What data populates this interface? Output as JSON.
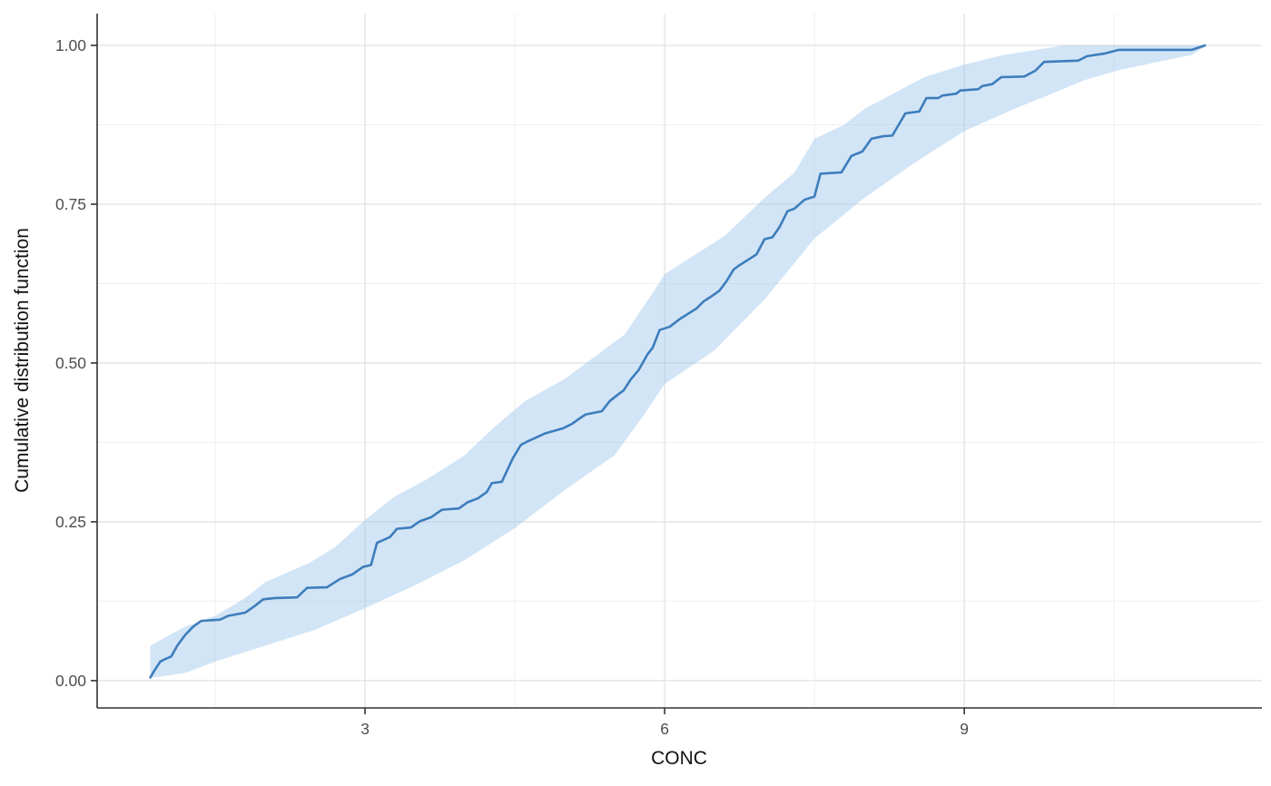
{
  "figure": {
    "background": "#ffffff",
    "panel_background": "#ffffff",
    "grid_major_color": "#e2e2e2",
    "grid_minor_color": "#efefef",
    "axis_line_color": "#333333",
    "tick_label_color": "#4d4d4d",
    "axis_title_color": "#111111"
  },
  "chart_data": {
    "type": "line",
    "subtype": "empirical-cdf-with-confidence-band",
    "title": "",
    "xlabel": "CONC",
    "ylabel": "Cumulative distribution function",
    "xlim": [
      0.318,
      11.98
    ],
    "ylim": [
      -0.043,
      1.05
    ],
    "grid": true,
    "legend_position": "none",
    "x_ticks": [
      {
        "value": 3,
        "label": "3"
      },
      {
        "value": 6,
        "label": "6"
      },
      {
        "value": 9,
        "label": "9"
      }
    ],
    "x_minor_breaks": [
      1.5,
      4.5,
      7.5,
      10.5
    ],
    "y_ticks": [
      {
        "value": 0.0,
        "label": "0.00"
      },
      {
        "value": 0.25,
        "label": "0.25"
      },
      {
        "value": 0.5,
        "label": "0.50"
      },
      {
        "value": 0.75,
        "label": "0.75"
      },
      {
        "value": 1.0,
        "label": "1.00"
      }
    ],
    "y_minor_breaks": [
      0.125,
      0.375,
      0.625,
      0.875
    ],
    "series": [
      {
        "name": "cdf-line",
        "color": "#3d7dbc",
        "width": 2.6,
        "points": [
          [
            0.85,
            0.005
          ],
          [
            0.9,
            0.018
          ],
          [
            0.95,
            0.03
          ],
          [
            1.0,
            0.034
          ],
          [
            1.06,
            0.038
          ],
          [
            1.12,
            0.055
          ],
          [
            1.2,
            0.072
          ],
          [
            1.28,
            0.085
          ],
          [
            1.36,
            0.094
          ],
          [
            1.55,
            0.096
          ],
          [
            1.63,
            0.102
          ],
          [
            1.8,
            0.107
          ],
          [
            1.9,
            0.118
          ],
          [
            1.98,
            0.128
          ],
          [
            2.1,
            0.13
          ],
          [
            2.32,
            0.131
          ],
          [
            2.42,
            0.146
          ],
          [
            2.62,
            0.147
          ],
          [
            2.75,
            0.16
          ],
          [
            2.87,
            0.167
          ],
          [
            2.98,
            0.179
          ],
          [
            3.06,
            0.182
          ],
          [
            3.12,
            0.217
          ],
          [
            3.25,
            0.226
          ],
          [
            3.32,
            0.239
          ],
          [
            3.46,
            0.241
          ],
          [
            3.55,
            0.251
          ],
          [
            3.66,
            0.257
          ],
          [
            3.77,
            0.269
          ],
          [
            3.94,
            0.271
          ],
          [
            4.03,
            0.281
          ],
          [
            4.13,
            0.287
          ],
          [
            4.22,
            0.297
          ],
          [
            4.27,
            0.311
          ],
          [
            4.37,
            0.313
          ],
          [
            4.48,
            0.35
          ],
          [
            4.56,
            0.371
          ],
          [
            4.62,
            0.376
          ],
          [
            4.8,
            0.389
          ],
          [
            4.98,
            0.397
          ],
          [
            5.07,
            0.404
          ],
          [
            5.16,
            0.414
          ],
          [
            5.21,
            0.419
          ],
          [
            5.37,
            0.424
          ],
          [
            5.45,
            0.44
          ],
          [
            5.53,
            0.45
          ],
          [
            5.59,
            0.457
          ],
          [
            5.66,
            0.474
          ],
          [
            5.74,
            0.489
          ],
          [
            5.83,
            0.514
          ],
          [
            5.88,
            0.524
          ],
          [
            5.95,
            0.552
          ],
          [
            6.05,
            0.557
          ],
          [
            6.15,
            0.569
          ],
          [
            6.22,
            0.576
          ],
          [
            6.32,
            0.586
          ],
          [
            6.39,
            0.597
          ],
          [
            6.46,
            0.604
          ],
          [
            6.55,
            0.614
          ],
          [
            6.62,
            0.629
          ],
          [
            6.69,
            0.647
          ],
          [
            6.74,
            0.653
          ],
          [
            6.83,
            0.662
          ],
          [
            6.92,
            0.671
          ],
          [
            7.0,
            0.695
          ],
          [
            7.08,
            0.698
          ],
          [
            7.15,
            0.714
          ],
          [
            7.23,
            0.739
          ],
          [
            7.3,
            0.743
          ],
          [
            7.4,
            0.757
          ],
          [
            7.5,
            0.762
          ],
          [
            7.56,
            0.798
          ],
          [
            7.77,
            0.8
          ],
          [
            7.87,
            0.826
          ],
          [
            7.98,
            0.833
          ],
          [
            8.07,
            0.853
          ],
          [
            8.19,
            0.857
          ],
          [
            8.28,
            0.858
          ],
          [
            8.41,
            0.893
          ],
          [
            8.55,
            0.896
          ],
          [
            8.62,
            0.917
          ],
          [
            8.74,
            0.917
          ],
          [
            8.78,
            0.921
          ],
          [
            8.92,
            0.924
          ],
          [
            8.96,
            0.929
          ],
          [
            9.14,
            0.931
          ],
          [
            9.18,
            0.936
          ],
          [
            9.28,
            0.939
          ],
          [
            9.37,
            0.95
          ],
          [
            9.6,
            0.951
          ],
          [
            9.71,
            0.96
          ],
          [
            9.8,
            0.974
          ],
          [
            10.14,
            0.976
          ],
          [
            10.23,
            0.983
          ],
          [
            10.4,
            0.987
          ],
          [
            10.55,
            0.993
          ],
          [
            11.28,
            0.993
          ],
          [
            11.41,
            1.0
          ]
        ]
      }
    ],
    "band": {
      "name": "confidence-band",
      "fill": "#9cc5ec",
      "opacity": 0.45,
      "upper": [
        [
          0.85,
          0.055
        ],
        [
          1.0,
          0.068
        ],
        [
          1.2,
          0.085
        ],
        [
          1.5,
          0.102
        ],
        [
          1.8,
          0.13
        ],
        [
          2.0,
          0.155
        ],
        [
          2.44,
          0.185
        ],
        [
          2.7,
          0.21
        ],
        [
          3.0,
          0.253
        ],
        [
          3.3,
          0.29
        ],
        [
          3.6,
          0.315
        ],
        [
          4.0,
          0.355
        ],
        [
          4.3,
          0.4
        ],
        [
          4.6,
          0.44
        ],
        [
          5.0,
          0.475
        ],
        [
          5.3,
          0.51
        ],
        [
          5.6,
          0.545
        ],
        [
          5.9,
          0.615
        ],
        [
          6.0,
          0.64
        ],
        [
          6.3,
          0.67
        ],
        [
          6.6,
          0.7
        ],
        [
          7.0,
          0.76
        ],
        [
          7.3,
          0.8
        ],
        [
          7.5,
          0.853
        ],
        [
          7.8,
          0.875
        ],
        [
          8.0,
          0.9
        ],
        [
          8.3,
          0.925
        ],
        [
          8.6,
          0.95
        ],
        [
          9.0,
          0.97
        ],
        [
          9.4,
          0.985
        ],
        [
          10.0,
          1.0
        ],
        [
          11.41,
          1.0
        ]
      ],
      "lower": [
        [
          0.85,
          0.004
        ],
        [
          1.2,
          0.012
        ],
        [
          1.5,
          0.03
        ],
        [
          2.0,
          0.055
        ],
        [
          2.5,
          0.08
        ],
        [
          3.0,
          0.114
        ],
        [
          3.5,
          0.15
        ],
        [
          4.0,
          0.19
        ],
        [
          4.5,
          0.24
        ],
        [
          5.0,
          0.3
        ],
        [
          5.5,
          0.355
        ],
        [
          5.8,
          0.42
        ],
        [
          6.0,
          0.467
        ],
        [
          6.5,
          0.52
        ],
        [
          7.0,
          0.6
        ],
        [
          7.5,
          0.696
        ],
        [
          8.0,
          0.76
        ],
        [
          8.5,
          0.815
        ],
        [
          9.0,
          0.865
        ],
        [
          9.5,
          0.9
        ],
        [
          9.8,
          0.919
        ],
        [
          10.2,
          0.945
        ],
        [
          10.55,
          0.961
        ],
        [
          11.0,
          0.976
        ],
        [
          11.28,
          0.985
        ],
        [
          11.41,
          0.998
        ]
      ]
    }
  }
}
